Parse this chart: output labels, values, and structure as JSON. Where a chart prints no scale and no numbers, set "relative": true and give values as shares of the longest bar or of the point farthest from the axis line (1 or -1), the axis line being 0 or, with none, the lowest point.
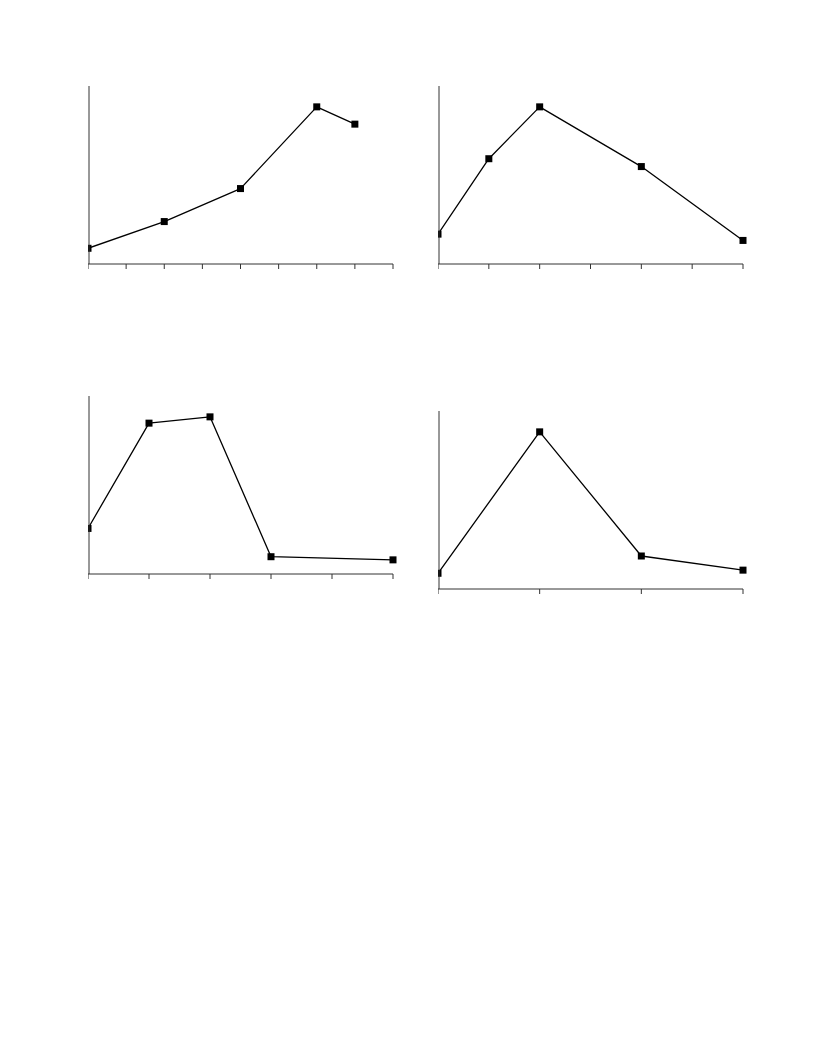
{
  "chart_data": [
    {
      "type": "line",
      "relative": true,
      "marker": "square",
      "line_style": "solid",
      "categories": [
        null,
        null,
        null,
        null,
        null,
        null,
        null,
        null,
        null
      ],
      "series": [
        {
          "color": "#000000",
          "values": [
            0.1,
            null,
            0.27,
            null,
            0.48,
            null,
            1,
            0.89,
            null
          ]
        }
      ]
    },
    {
      "type": "line",
      "relative": true,
      "marker": "square",
      "line_style": "solid",
      "categories": [
        null,
        null,
        null,
        null,
        null,
        null,
        null
      ],
      "series": [
        {
          "color": "#000000",
          "values": [
            0.19,
            0.67,
            1,
            null,
            0.62,
            null,
            0.15
          ]
        }
      ]
    },
    {
      "type": "line",
      "relative": true,
      "marker": "square",
      "line_style": "solid",
      "categories": [
        null,
        null,
        null,
        null,
        null,
        null
      ],
      "series": [
        {
          "color": "#000000",
          "values": [
            0.29,
            0.96,
            1,
            0.11,
            null,
            0.09
          ]
        }
      ]
    },
    {
      "type": "line",
      "relative": true,
      "marker": "square",
      "line_style": "solid",
      "categories": [
        null,
        null,
        null,
        null
      ],
      "series": [
        {
          "color": "#000000",
          "values": [
            0.1,
            1,
            0.21,
            0.12
          ]
        }
      ]
    }
  ]
}
